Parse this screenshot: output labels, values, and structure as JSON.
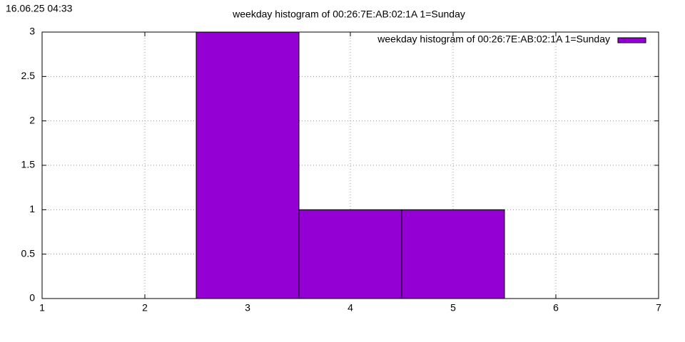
{
  "timestamp": "16.06.25 04:33",
  "chart_data": {
    "type": "bar",
    "title": "weekday histogram of 00:26:7E:AB:02:1A 1=Sunday",
    "x": [
      3,
      4,
      5
    ],
    "series": [
      {
        "name": "weekday histogram of 00:26:7E:AB:02:1A 1=Sunday",
        "color": "#9400d3",
        "values": [
          3,
          1,
          1
        ]
      }
    ],
    "xlim": [
      1,
      7
    ],
    "xticks": [
      1,
      2,
      3,
      4,
      5,
      6,
      7
    ],
    "ylim": [
      0,
      3
    ],
    "yticks": [
      0,
      0.5,
      1,
      1.5,
      2,
      2.5,
      3
    ],
    "grid": true,
    "legend": "top-right"
  }
}
